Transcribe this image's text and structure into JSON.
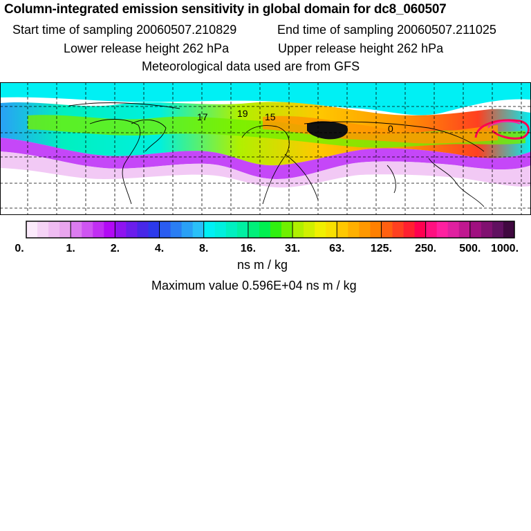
{
  "header": {
    "title": "Column-integrated emission sensitivity in global domain for dc8_060507",
    "start_label": "Start time of sampling 20060507.210829",
    "end_label": "End time of sampling 20060507.211025",
    "lower_label": "Lower release height  262 hPa",
    "upper_label": "Upper release height  262 hPa",
    "met_label": "Meteorological data used are from GFS"
  },
  "map": {
    "trajectory_labels": [
      "17",
      "19",
      "15",
      "0"
    ],
    "background": "#ffffff",
    "grid_color": "#000000"
  },
  "legend": {
    "tick_labels": [
      "0.",
      "1.",
      "2.",
      "4.",
      "8.",
      "16.",
      "31.",
      "63.",
      "125.",
      "250.",
      "500.",
      "1000."
    ],
    "colors": [
      "#fbeafb",
      "#f5d3f6",
      "#efbcf2",
      "#e9a5ee",
      "#dc7cf0",
      "#cf55f2",
      "#c12ef3",
      "#b20af5",
      "#8f14f0",
      "#6b1eec",
      "#4828e8",
      "#2c3aeb",
      "#2a5cf0",
      "#2a7ef3",
      "#2aa0f6",
      "#2ac0f8",
      "#00f0f4",
      "#00f0de",
      "#00f0c0",
      "#00f0a2",
      "#00f07a",
      "#00f050",
      "#30f010",
      "#70f000",
      "#b0f000",
      "#d0f000",
      "#f0f000",
      "#f8e000",
      "#ffc800",
      "#ffb000",
      "#ff9800",
      "#ff8000",
      "#ff6010",
      "#ff4020",
      "#ff2030",
      "#ff0050",
      "#ff1080",
      "#ff20a0",
      "#e020a0",
      "#c01890",
      "#a01080",
      "#801070",
      "#601060",
      "#400840"
    ],
    "unit": "ns m / kg",
    "max_label": "Maximum value  0.596E+04 ns m / kg"
  }
}
